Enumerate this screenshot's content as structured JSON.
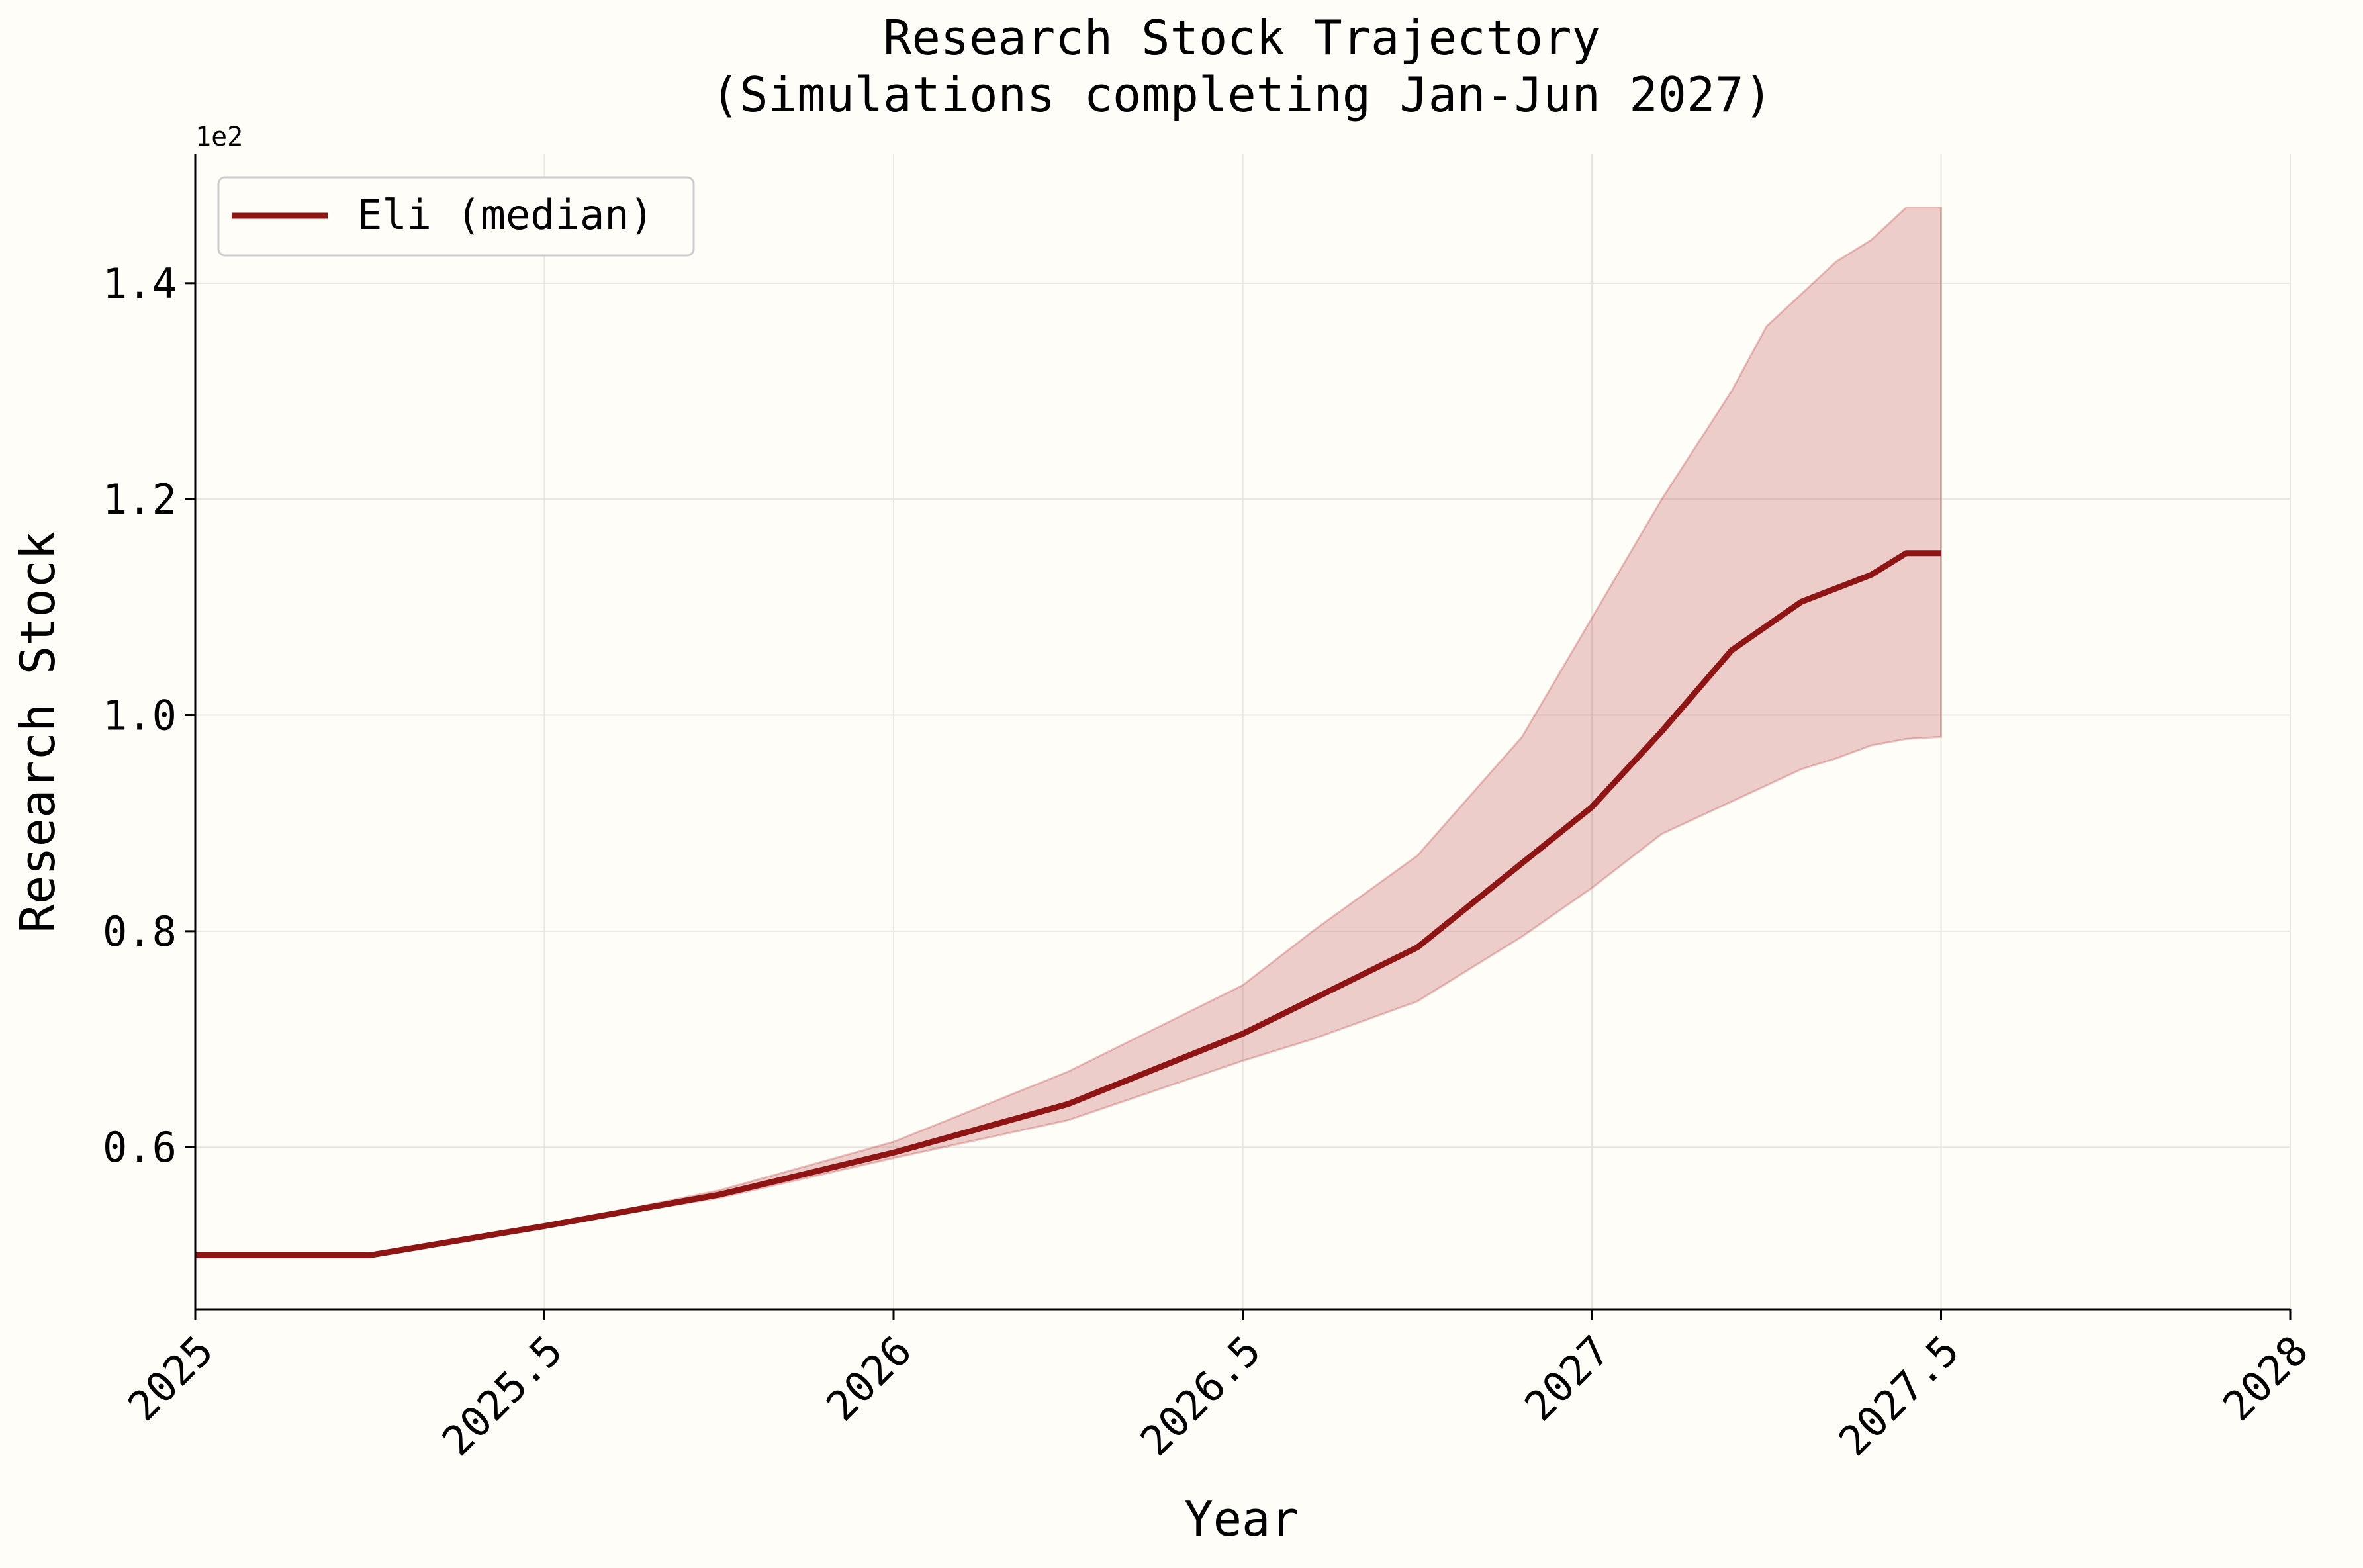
{
  "chart_data": {
    "type": "line",
    "title": "Research Stock Trajectory",
    "subtitle": "(Simulations completing Jan-Jun 2027)",
    "xlabel": "Year",
    "ylabel": "Research Stock",
    "y_offset_label": "1e2",
    "xlim": [
      2025,
      2028
    ],
    "ylim": [
      0.45,
      1.52
    ],
    "x_ticks": [
      2025,
      2025.5,
      2026,
      2026.5,
      2027,
      2027.5,
      2028
    ],
    "x_tick_labels": [
      "2025",
      "2025.5",
      "2026",
      "2026.5",
      "2027",
      "2027.5",
      "2028"
    ],
    "y_ticks": [
      0.6,
      0.8,
      1.0,
      1.2,
      1.4
    ],
    "y_tick_labels": [
      "0.6",
      "0.8",
      "1.0",
      "1.2",
      "1.4"
    ],
    "grid": true,
    "legend_position": "upper-left",
    "colors": {
      "line": "#8f1414",
      "band": "#b84040",
      "background": "#fffdf8"
    },
    "series": [
      {
        "name": "Eli (median)",
        "x": [
          2025.0,
          2025.25,
          2025.5,
          2025.75,
          2026.0,
          2026.25,
          2026.5,
          2026.75,
          2027.0,
          2027.1,
          2027.2,
          2027.3,
          2027.4,
          2027.45,
          2027.5
        ],
        "values": [
          0.5,
          0.5,
          0.527,
          0.556,
          0.595,
          0.64,
          0.705,
          0.785,
          0.915,
          0.985,
          1.06,
          1.105,
          1.13,
          1.15,
          1.15
        ]
      }
    ],
    "band": {
      "x": [
        2025.0,
        2025.25,
        2025.5,
        2025.75,
        2026.0,
        2026.25,
        2026.5,
        2026.6,
        2026.75,
        2026.9,
        2027.0,
        2027.1,
        2027.2,
        2027.25,
        2027.3,
        2027.35,
        2027.4,
        2027.45,
        2027.5
      ],
      "lower": [
        0.5,
        0.5,
        0.527,
        0.553,
        0.59,
        0.625,
        0.68,
        0.7,
        0.735,
        0.795,
        0.84,
        0.89,
        0.92,
        0.935,
        0.95,
        0.96,
        0.972,
        0.978,
        0.98
      ],
      "upper": [
        0.5,
        0.5,
        0.527,
        0.56,
        0.605,
        0.67,
        0.75,
        0.8,
        0.87,
        0.98,
        1.09,
        1.2,
        1.3,
        1.36,
        1.39,
        1.42,
        1.44,
        1.47,
        1.47
      ]
    }
  }
}
